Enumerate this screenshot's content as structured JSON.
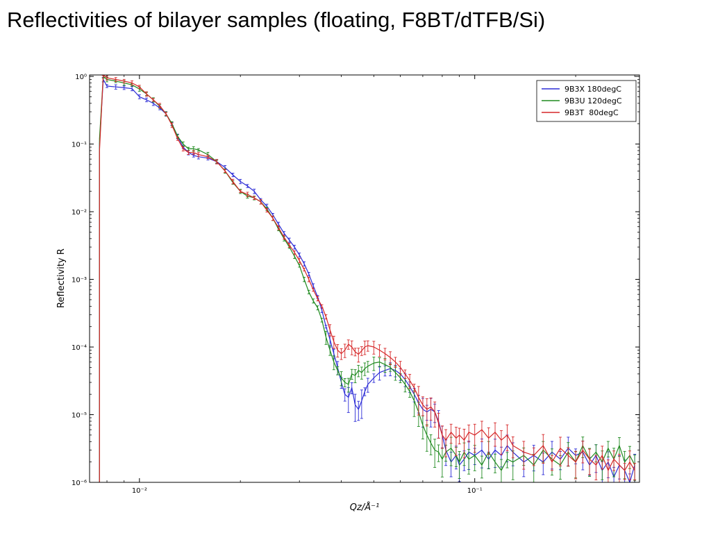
{
  "page": {
    "title": "Reflectivities of bilayer samples  (floating, F8BT/dTFB/Si)"
  },
  "colors": {
    "blue": "#2b2bd6",
    "green": "#1f8a1f",
    "red": "#d62728",
    "axis": "#000000"
  },
  "chart_data": {
    "type": "line",
    "title": "",
    "xlabel": "Qz/Å⁻¹",
    "ylabel": "Reflectivity R",
    "xscale": "log",
    "yscale": "log",
    "xlim": [
      0.0071,
      0.31
    ],
    "ylim": [
      1e-06,
      1.05
    ],
    "xticks": [
      {
        "value": 0.01,
        "label": "10⁻²"
      },
      {
        "value": 0.1,
        "label": "10⁻¹"
      }
    ],
    "yticks": [
      {
        "value": 1,
        "label": "10⁰"
      },
      {
        "value": 0.1,
        "label": "10⁻¹"
      },
      {
        "value": 0.01,
        "label": "10⁻²"
      },
      {
        "value": 0.001,
        "label": "10⁻³"
      },
      {
        "value": 0.0001,
        "label": "10⁻⁴"
      },
      {
        "value": 1e-05,
        "label": "10⁻⁵"
      },
      {
        "value": 1e-06,
        "label": "10⁻⁶"
      }
    ],
    "grid": false,
    "legend_position": "top-right",
    "series": [
      {
        "name": "9B3X 180degC",
        "color": "#2b2bd6",
        "points": [
          [
            0.0076,
            0.1
          ],
          [
            0.0078,
            0.9
          ],
          [
            0.008,
            0.72
          ],
          [
            0.0085,
            0.7
          ],
          [
            0.009,
            0.68
          ],
          [
            0.0095,
            0.66
          ],
          [
            0.01,
            0.5
          ],
          [
            0.0105,
            0.45
          ],
          [
            0.011,
            0.4
          ],
          [
            0.0115,
            0.34
          ],
          [
            0.012,
            0.28
          ],
          [
            0.0125,
            0.2
          ],
          [
            0.013,
            0.13
          ],
          [
            0.0135,
            0.09
          ],
          [
            0.014,
            0.075
          ],
          [
            0.0145,
            0.068
          ],
          [
            0.015,
            0.065
          ],
          [
            0.016,
            0.062
          ],
          [
            0.017,
            0.055
          ],
          [
            0.018,
            0.045
          ],
          [
            0.019,
            0.035
          ],
          [
            0.02,
            0.028
          ],
          [
            0.021,
            0.024
          ],
          [
            0.022,
            0.02
          ],
          [
            0.023,
            0.015
          ],
          [
            0.024,
            0.012
          ],
          [
            0.025,
            0.009
          ],
          [
            0.026,
            0.0065
          ],
          [
            0.027,
            0.0048
          ],
          [
            0.028,
            0.0038
          ],
          [
            0.029,
            0.003
          ],
          [
            0.03,
            0.0023
          ],
          [
            0.031,
            0.0017
          ],
          [
            0.032,
            0.0012
          ],
          [
            0.033,
            0.0008
          ],
          [
            0.034,
            0.00055
          ],
          [
            0.035,
            0.00035
          ],
          [
            0.036,
            0.0002
          ],
          [
            0.037,
            0.00013
          ],
          [
            0.038,
            8e-05
          ],
          [
            0.039,
            5e-05
          ],
          [
            0.04,
            3e-05
          ],
          [
            0.041,
            2e-05
          ],
          [
            0.042,
            1.8e-05
          ],
          [
            0.043,
            2.5e-05
          ],
          [
            0.044,
            1.4e-05
          ],
          [
            0.045,
            1.2e-05
          ],
          [
            0.046,
            1.6e-05
          ],
          [
            0.047,
            2.2e-05
          ],
          [
            0.048,
            2.8e-05
          ],
          [
            0.05,
            3.5e-05
          ],
          [
            0.052,
            4.2e-05
          ],
          [
            0.054,
            4.5e-05
          ],
          [
            0.056,
            4.8e-05
          ],
          [
            0.058,
            4.5e-05
          ],
          [
            0.06,
            4e-05
          ],
          [
            0.062,
            3.3e-05
          ],
          [
            0.064,
            2.6e-05
          ],
          [
            0.066,
            2e-05
          ],
          [
            0.068,
            1.5e-05
          ],
          [
            0.07,
            1.2e-05
          ],
          [
            0.072,
            1.1e-05
          ],
          [
            0.074,
            1.2e-05
          ],
          [
            0.076,
            1.1e-05
          ],
          [
            0.078,
            8e-06
          ],
          [
            0.08,
            5e-06
          ],
          [
            0.082,
            3e-06
          ],
          [
            0.085,
            2e-06
          ],
          [
            0.088,
            2.5e-06
          ],
          [
            0.09,
            1.8e-06
          ],
          [
            0.093,
            2.2e-06
          ],
          [
            0.096,
            2.8e-06
          ],
          [
            0.1,
            2.5e-06
          ],
          [
            0.105,
            3e-06
          ],
          [
            0.11,
            2.2e-06
          ],
          [
            0.115,
            3e-06
          ],
          [
            0.12,
            2.5e-06
          ],
          [
            0.125,
            3.5e-06
          ],
          [
            0.13,
            2.8e-06
          ],
          [
            0.14,
            2e-06
          ],
          [
            0.15,
            2.5e-06
          ],
          [
            0.16,
            2e-06
          ],
          [
            0.17,
            2.8e-06
          ],
          [
            0.18,
            2.2e-06
          ],
          [
            0.19,
            3.2e-06
          ],
          [
            0.2,
            2.5e-06
          ],
          [
            0.21,
            2.8e-06
          ],
          [
            0.22,
            1.8e-06
          ],
          [
            0.23,
            2.5e-06
          ],
          [
            0.24,
            1.5e-06
          ],
          [
            0.25,
            2e-06
          ],
          [
            0.26,
            1.2e-06
          ],
          [
            0.27,
            1.8e-06
          ],
          [
            0.28,
            1.5e-06
          ],
          [
            0.29,
            1e-06
          ],
          [
            0.3,
            1.8e-06
          ]
        ]
      },
      {
        "name": "9B3U 120degC",
        "color": "#1f8a1f",
        "points": [
          [
            0.0076,
            0.12
          ],
          [
            0.0078,
            1.0
          ],
          [
            0.008,
            0.9
          ],
          [
            0.0085,
            0.85
          ],
          [
            0.009,
            0.8
          ],
          [
            0.0095,
            0.75
          ],
          [
            0.01,
            0.65
          ],
          [
            0.0105,
            0.55
          ],
          [
            0.011,
            0.45
          ],
          [
            0.0115,
            0.36
          ],
          [
            0.012,
            0.28
          ],
          [
            0.0125,
            0.2
          ],
          [
            0.013,
            0.13
          ],
          [
            0.0135,
            0.1
          ],
          [
            0.014,
            0.085
          ],
          [
            0.0145,
            0.085
          ],
          [
            0.015,
            0.082
          ],
          [
            0.016,
            0.07
          ],
          [
            0.017,
            0.055
          ],
          [
            0.018,
            0.04
          ],
          [
            0.019,
            0.027
          ],
          [
            0.02,
            0.02
          ],
          [
            0.021,
            0.017
          ],
          [
            0.022,
            0.016
          ],
          [
            0.023,
            0.014
          ],
          [
            0.024,
            0.011
          ],
          [
            0.025,
            0.008
          ],
          [
            0.026,
            0.0055
          ],
          [
            0.027,
            0.004
          ],
          [
            0.028,
            0.003
          ],
          [
            0.029,
            0.0022
          ],
          [
            0.03,
            0.0016
          ],
          [
            0.031,
            0.001
          ],
          [
            0.032,
            0.00065
          ],
          [
            0.033,
            0.00048
          ],
          [
            0.034,
            0.00038
          ],
          [
            0.035,
            0.00025
          ],
          [
            0.036,
            0.00014
          ],
          [
            0.037,
            9e-05
          ],
          [
            0.038,
            6e-05
          ],
          [
            0.039,
            4.5e-05
          ],
          [
            0.04,
            3.5e-05
          ],
          [
            0.041,
            3e-05
          ],
          [
            0.042,
            2.8e-05
          ],
          [
            0.043,
            4e-05
          ],
          [
            0.044,
            3.8e-05
          ],
          [
            0.045,
            4.5e-05
          ],
          [
            0.046,
            4.2e-05
          ],
          [
            0.047,
            4.8e-05
          ],
          [
            0.048,
            5.2e-05
          ],
          [
            0.05,
            5.8e-05
          ],
          [
            0.052,
            6e-05
          ],
          [
            0.054,
            5.5e-05
          ],
          [
            0.056,
            5e-05
          ],
          [
            0.058,
            4.2e-05
          ],
          [
            0.06,
            3.5e-05
          ],
          [
            0.062,
            2.8e-05
          ],
          [
            0.064,
            2.2e-05
          ],
          [
            0.066,
            1.6e-05
          ],
          [
            0.068,
            1.1e-05
          ],
          [
            0.07,
            7e-06
          ],
          [
            0.072,
            5e-06
          ],
          [
            0.074,
            3.8e-06
          ],
          [
            0.076,
            3e-06
          ],
          [
            0.078,
            2.8e-06
          ],
          [
            0.08,
            2.2e-06
          ],
          [
            0.082,
            2.8e-06
          ],
          [
            0.085,
            3.2e-06
          ],
          [
            0.088,
            2.5e-06
          ],
          [
            0.09,
            2e-06
          ],
          [
            0.093,
            2.8e-06
          ],
          [
            0.096,
            2.2e-06
          ],
          [
            0.1,
            2.5e-06
          ],
          [
            0.105,
            1.8e-06
          ],
          [
            0.11,
            2.8e-06
          ],
          [
            0.115,
            2e-06
          ],
          [
            0.12,
            1.5e-06
          ],
          [
            0.125,
            2.2e-06
          ],
          [
            0.13,
            2e-06
          ],
          [
            0.14,
            2.5e-06
          ],
          [
            0.15,
            1.8e-06
          ],
          [
            0.16,
            3e-06
          ],
          [
            0.17,
            2.2e-06
          ],
          [
            0.18,
            1.8e-06
          ],
          [
            0.19,
            2.8e-06
          ],
          [
            0.2,
            2e-06
          ],
          [
            0.21,
            3.5e-06
          ],
          [
            0.22,
            2.2e-06
          ],
          [
            0.23,
            2.8e-06
          ],
          [
            0.24,
            2e-06
          ],
          [
            0.25,
            3.2e-06
          ],
          [
            0.26,
            2.2e-06
          ],
          [
            0.27,
            3.5e-06
          ],
          [
            0.28,
            2e-06
          ],
          [
            0.29,
            2.5e-06
          ],
          [
            0.3,
            1.8e-06
          ]
        ]
      },
      {
        "name": "9B3T  80degC",
        "color": "#d62728",
        "points": [
          [
            0.0076,
            0.08
          ],
          [
            0.0078,
            1.1
          ],
          [
            0.008,
            0.95
          ],
          [
            0.0085,
            0.9
          ],
          [
            0.009,
            0.85
          ],
          [
            0.0095,
            0.8
          ],
          [
            0.01,
            0.7
          ],
          [
            0.0105,
            0.55
          ],
          [
            0.011,
            0.45
          ],
          [
            0.0115,
            0.37
          ],
          [
            0.012,
            0.28
          ],
          [
            0.0125,
            0.19
          ],
          [
            0.013,
            0.12
          ],
          [
            0.0135,
            0.085
          ],
          [
            0.014,
            0.075
          ],
          [
            0.0145,
            0.075
          ],
          [
            0.015,
            0.07
          ],
          [
            0.016,
            0.065
          ],
          [
            0.017,
            0.055
          ],
          [
            0.018,
            0.04
          ],
          [
            0.019,
            0.028
          ],
          [
            0.02,
            0.02
          ],
          [
            0.021,
            0.018
          ],
          [
            0.022,
            0.016
          ],
          [
            0.023,
            0.014
          ],
          [
            0.024,
            0.0105
          ],
          [
            0.025,
            0.008
          ],
          [
            0.026,
            0.0058
          ],
          [
            0.027,
            0.0042
          ],
          [
            0.028,
            0.0032
          ],
          [
            0.029,
            0.0025
          ],
          [
            0.03,
            0.0019
          ],
          [
            0.031,
            0.0014
          ],
          [
            0.032,
            0.001
          ],
          [
            0.033,
            0.0007
          ],
          [
            0.034,
            0.00052
          ],
          [
            0.035,
            0.0004
          ],
          [
            0.036,
            0.00028
          ],
          [
            0.037,
            0.00018
          ],
          [
            0.038,
            0.00012
          ],
          [
            0.039,
            9e-05
          ],
          [
            0.04,
            8e-05
          ],
          [
            0.041,
            9e-05
          ],
          [
            0.042,
            0.00011
          ],
          [
            0.043,
            0.0001
          ],
          [
            0.044,
            8.5e-05
          ],
          [
            0.045,
            7.8e-05
          ],
          [
            0.046,
            8.8e-05
          ],
          [
            0.047,
            0.0001
          ],
          [
            0.048,
            0.000105
          ],
          [
            0.05,
            0.0001
          ],
          [
            0.052,
            9e-05
          ],
          [
            0.054,
            8e-05
          ],
          [
            0.056,
            7e-05
          ],
          [
            0.058,
            6e-05
          ],
          [
            0.06,
            5e-05
          ],
          [
            0.062,
            4e-05
          ],
          [
            0.064,
            3.2e-05
          ],
          [
            0.066,
            2.5e-05
          ],
          [
            0.068,
            1.8e-05
          ],
          [
            0.07,
            1.4e-05
          ],
          [
            0.072,
            1.2e-05
          ],
          [
            0.074,
            1.3e-05
          ],
          [
            0.076,
            1.1e-05
          ],
          [
            0.078,
            7.5e-06
          ],
          [
            0.08,
            5e-06
          ],
          [
            0.082,
            4.2e-06
          ],
          [
            0.085,
            5.5e-06
          ],
          [
            0.088,
            4.5e-06
          ],
          [
            0.09,
            5e-06
          ],
          [
            0.093,
            4.2e-06
          ],
          [
            0.096,
            5.5e-06
          ],
          [
            0.1,
            5e-06
          ],
          [
            0.105,
            6e-06
          ],
          [
            0.11,
            4.5e-06
          ],
          [
            0.115,
            5.5e-06
          ],
          [
            0.12,
            4.2e-06
          ],
          [
            0.125,
            5e-06
          ],
          [
            0.13,
            3.5e-06
          ],
          [
            0.14,
            2.8e-06
          ],
          [
            0.15,
            2.5e-06
          ],
          [
            0.16,
            3.5e-06
          ],
          [
            0.17,
            2e-06
          ],
          [
            0.18,
            3.2e-06
          ],
          [
            0.19,
            2.5e-06
          ],
          [
            0.2,
            2e-06
          ],
          [
            0.21,
            3e-06
          ],
          [
            0.22,
            2.2e-06
          ],
          [
            0.23,
            1.8e-06
          ],
          [
            0.24,
            2.5e-06
          ],
          [
            0.25,
            1.5e-06
          ],
          [
            0.26,
            2.2e-06
          ],
          [
            0.27,
            1.8e-06
          ],
          [
            0.28,
            1.5e-06
          ],
          [
            0.29,
            2e-06
          ],
          [
            0.3,
            1.5e-06
          ]
        ]
      }
    ]
  }
}
